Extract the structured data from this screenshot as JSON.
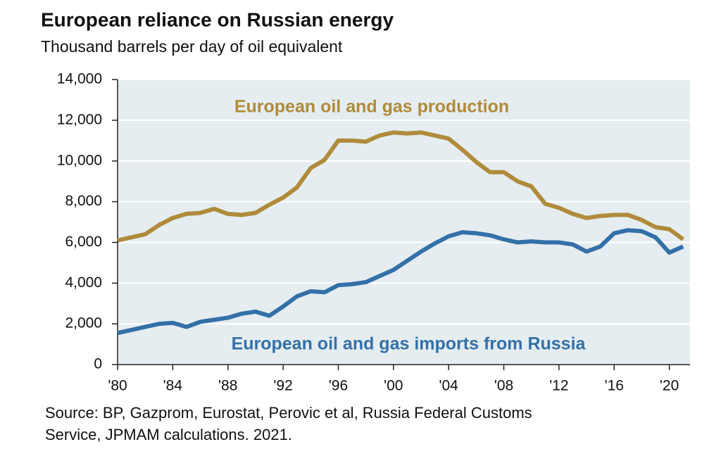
{
  "chart_data": {
    "type": "line",
    "title": "European reliance on Russian energy",
    "subtitle": "Thousand barrels per day of oil equivalent",
    "source": [
      "Source: BP, Gazprom, Eurostat, Perovic et al, Russia Federal Customs",
      "Service, JPMAM calculations. 2021."
    ],
    "x": [
      1980,
      1981,
      1982,
      1983,
      1984,
      1985,
      1986,
      1987,
      1988,
      1989,
      1990,
      1991,
      1992,
      1993,
      1994,
      1995,
      1996,
      1997,
      1998,
      1999,
      2000,
      2001,
      2002,
      2003,
      2004,
      2005,
      2006,
      2007,
      2008,
      2009,
      2010,
      2011,
      2012,
      2013,
      2014,
      2015,
      2016,
      2017,
      2018,
      2019,
      2020,
      2021
    ],
    "series": [
      {
        "name": "European oil and gas production",
        "color": "#b08b3b",
        "values": [
          6100,
          6250,
          6400,
          6850,
          7200,
          7400,
          7450,
          7650,
          7400,
          7350,
          7450,
          7850,
          8200,
          8700,
          9650,
          10050,
          11000,
          11000,
          10950,
          11250,
          11400,
          11350,
          11400,
          11250,
          11100,
          10550,
          9950,
          9450,
          9450,
          9000,
          8750,
          7900,
          7700,
          7400,
          7200,
          7300,
          7350,
          7350,
          7100,
          6750,
          6650,
          6150
        ]
      },
      {
        "name": "European oil and gas imports from Russia",
        "color": "#3470a8",
        "values": [
          1550,
          1700,
          1850,
          2000,
          2050,
          1850,
          2100,
          2200,
          2300,
          2500,
          2600,
          2400,
          2850,
          3350,
          3600,
          3550,
          3900,
          3950,
          4050,
          4350,
          4650,
          5100,
          5550,
          5950,
          6300,
          6500,
          6450,
          6350,
          6150,
          6000,
          6050,
          6000,
          6000,
          5900,
          5550,
          5800,
          6450,
          6600,
          6550,
          6250,
          5500,
          5800
        ]
      }
    ],
    "xlim": [
      1980,
      2021.5
    ],
    "xticks": [
      {
        "value": 1980,
        "label": "'80"
      },
      {
        "value": 1984,
        "label": "'84"
      },
      {
        "value": 1988,
        "label": "'88"
      },
      {
        "value": 1992,
        "label": "'92"
      },
      {
        "value": 1996,
        "label": "'96"
      },
      {
        "value": 2000,
        "label": "'00"
      },
      {
        "value": 2004,
        "label": "'04"
      },
      {
        "value": 2008,
        "label": "'08"
      },
      {
        "value": 2012,
        "label": "'12"
      },
      {
        "value": 2016,
        "label": "'16"
      },
      {
        "value": 2020,
        "label": "'20"
      }
    ],
    "ylim": [
      0,
      14000
    ],
    "yticks": [
      0,
      {
        "value": 2000,
        "label": "2,000"
      },
      {
        "value": 4000,
        "label": "4,000"
      },
      {
        "value": 6000,
        "label": "6,000"
      },
      {
        "value": 8000,
        "label": "8,000"
      },
      {
        "value": 10000,
        "label": "10,000"
      },
      {
        "value": 12000,
        "label": "12,000"
      },
      {
        "value": 14000,
        "label": "14,000"
      }
    ],
    "grid": true,
    "background": "#e5edf1"
  }
}
